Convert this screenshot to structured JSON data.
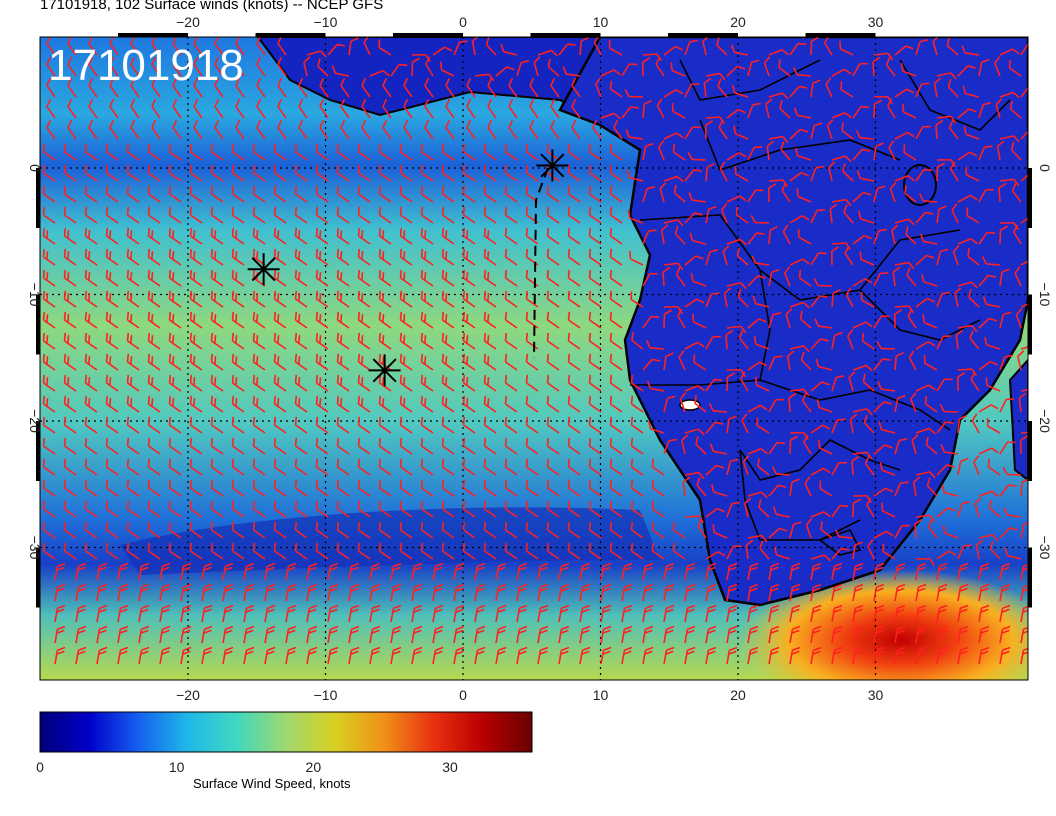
{
  "title": "17101918, 102 Surface winds (knots) -- NCEP GFS",
  "stamp": "17101918",
  "lon_labels": [
    "−20",
    "−10",
    "0",
    "10",
    "20",
    "30"
  ],
  "lon_values": [
    -20,
    -10,
    0,
    10,
    20,
    30
  ],
  "lat_labels": [
    "0",
    "−10",
    "−20",
    "−30"
  ],
  "lat_values": [
    0,
    -10,
    -20,
    -30
  ],
  "colorbar": {
    "label": "Surface Wind Speed, knots",
    "tick_labels": [
      "0",
      "10",
      "20",
      "30"
    ],
    "tick_values": [
      0,
      10,
      20,
      30
    ],
    "max": 36,
    "colors": [
      "#00007a",
      "#0000c8",
      "#1560f0",
      "#1fb8e8",
      "#3fd8c0",
      "#9fd870",
      "#d8d020",
      "#f09018",
      "#e83010",
      "#b80000",
      "#6a0000"
    ]
  },
  "colors": {
    "wind_barb": "#ff2020",
    "ocean_mid": "#2fb0d8",
    "land_low": "#1420c8",
    "coastline": "#000000"
  },
  "markers": [
    {
      "name": "marker-star-north",
      "lon": 6.5,
      "lat": 0.2
    },
    {
      "name": "marker-star-west",
      "lon": -14.5,
      "lat": -8.0
    },
    {
      "name": "marker-star-south",
      "lon": -5.7,
      "lat": -16.0
    }
  ]
}
